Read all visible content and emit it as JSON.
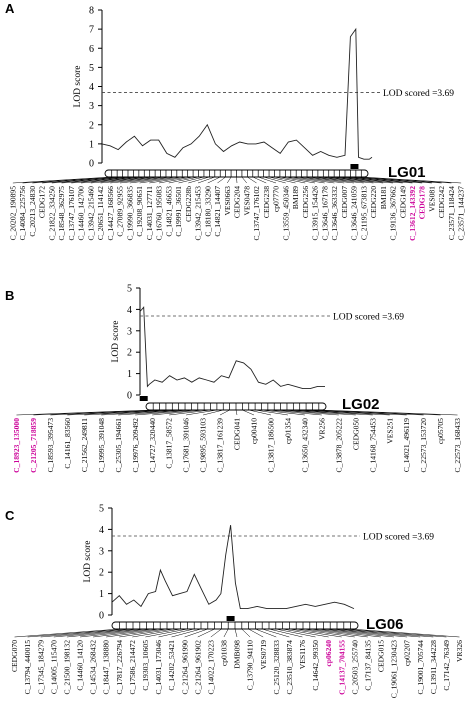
{
  "chart_data": [
    {
      "type": "line",
      "panel": "A",
      "linkage_group": "LG01",
      "ylabel": "LOD score",
      "ylim": [
        0,
        8
      ],
      "yticks": [
        "0",
        "1",
        "2",
        "3",
        "4",
        "5",
        "6",
        "7",
        "8"
      ],
      "threshold_label": "LOD scored =3.69",
      "threshold": 3.69,
      "x": [
        0,
        3,
        6,
        9,
        12,
        15,
        18,
        21,
        24,
        27,
        30,
        33,
        36,
        39,
        42,
        45,
        48,
        51,
        54,
        57,
        60,
        63,
        66,
        69,
        72,
        75,
        78,
        81,
        84,
        87,
        90,
        92,
        94,
        95,
        97,
        99,
        100
      ],
      "values": [
        1.0,
        0.9,
        0.7,
        1.1,
        1.4,
        0.9,
        1.2,
        1.2,
        0.5,
        0.3,
        0.8,
        1.0,
        1.4,
        2.0,
        1.0,
        0.6,
        0.9,
        1.1,
        1.0,
        1.0,
        1.1,
        0.8,
        0.5,
        1.1,
        1.2,
        0.8,
        0.4,
        0.6,
        0.4,
        0.3,
        0.4,
        6.6,
        7.0,
        0.3,
        0.2,
        0.2,
        0.3
      ],
      "qtl_marker_pos": 93.5,
      "markers": [
        "C_20202_190895",
        "C_14084_225756",
        "C_20213_24830",
        "CEDG172",
        "C_21822_334250",
        "C_18548_362975",
        "C_13747_176107",
        "C_14460_142700",
        "C_13942_215460",
        "C_20651_114142",
        "C_14427_168566",
        "C_27089_92955",
        "C_19990_366835",
        "C_19208_90651",
        "C_14031_127711",
        "C_16760_195083",
        "C_14821_46653",
        "C_19991_36501",
        "CEDG228b",
        "C_13942_215453",
        "C_18180_33290",
        "C_14821_14407",
        "VES0663",
        "CEDG204",
        "VES0478",
        "C_13747_176102",
        "CEDG238",
        "cp07770",
        "C_13559_450346",
        "BM189",
        "CEDG256",
        "C_13915_154426",
        "C_13646_167178",
        "C_13646_363332",
        "CEDG007",
        "C_13646_241059",
        "C_21195_673813",
        "CEDG220",
        "BM181",
        "C_19136_367662",
        "CEDG149",
        "C_13612_143392",
        "CEDG178",
        "VES081",
        "CEDG242",
        "C_23571_118424",
        "C_23571_144237"
      ],
      "highlighted": [
        "C_13612_143392",
        "CEDG178"
      ]
    },
    {
      "type": "line",
      "panel": "B",
      "linkage_group": "LG02",
      "ylabel": "LOD score",
      "ylim": [
        0,
        5
      ],
      "yticks": [
        "0",
        "1",
        "2",
        "3",
        "4",
        "5"
      ],
      "threshold_label": "LOD scored =3.69",
      "threshold": 3.69,
      "x": [
        0,
        2,
        4,
        5,
        8,
        12,
        16,
        20,
        24,
        28,
        32,
        36,
        40,
        44,
        48,
        52,
        56,
        60,
        64,
        68,
        72,
        76,
        80,
        84,
        88,
        92,
        96,
        100
      ],
      "values": [
        3.9,
        4.1,
        0.4,
        0.5,
        0.7,
        0.6,
        0.9,
        0.7,
        0.8,
        0.6,
        0.8,
        0.7,
        0.6,
        0.9,
        0.8,
        1.6,
        1.5,
        1.2,
        0.6,
        0.5,
        0.7,
        0.4,
        0.5,
        0.4,
        0.3,
        0.3,
        0.4,
        0.4
      ],
      "qtl_marker_pos": 2,
      "markers": [
        "C_18923_135000",
        "C_21205_718859",
        "C_18593_395473",
        "C_14161_83560",
        "C_21562_249811",
        "C_19995_391048",
        "C_25305_194661",
        "C_19976_209492",
        "C_14727_320440",
        "C_13817_58572",
        "C_17681_391046",
        "C_19895_593103",
        "C_13817_161239",
        "CEDG041",
        "cp00410",
        "C_13817_186500",
        "cp01354",
        "C_13650_432340",
        "VR256",
        "C_13878_205222",
        "CEDG050",
        "C_14168_754453",
        "VES251",
        "C_14021_496119",
        "C_22573_153720",
        "cp05705",
        "C_22573_168433"
      ],
      "highlighted": [
        "C_18923_135000",
        "C_21205_718859"
      ]
    },
    {
      "type": "line",
      "panel": "C",
      "linkage_group": "LG06",
      "ylabel": "LOD score",
      "ylim": [
        0,
        5
      ],
      "yticks": [
        "0",
        "1",
        "2",
        "3",
        "4",
        "5"
      ],
      "threshold_label": "LOD scored =3.69",
      "threshold": 3.69,
      "x": [
        0,
        3,
        6,
        9,
        12,
        15,
        18,
        20,
        22,
        25,
        28,
        31,
        34,
        37,
        40,
        43,
        45,
        47,
        49,
        51,
        53,
        56,
        60,
        64,
        68,
        72,
        76,
        80,
        84,
        88,
        92,
        96,
        100
      ],
      "values": [
        0.6,
        0.9,
        0.5,
        0.7,
        0.4,
        1.0,
        1.1,
        2.1,
        1.6,
        0.9,
        1.0,
        1.1,
        1.9,
        1.2,
        0.5,
        0.7,
        1.0,
        2.8,
        4.2,
        1.5,
        0.3,
        0.3,
        0.4,
        0.3,
        0.3,
        0.3,
        0.4,
        0.5,
        0.4,
        0.5,
        0.6,
        0.5,
        0.3
      ],
      "qtl_marker_pos": 49,
      "markers": [
        "CEDG070",
        "C_13794_440015",
        "C_17345_184279",
        "C_14005_115470",
        "C_21500_198132",
        "C_14460_14120",
        "C_14534_268432",
        "C_18447_138880",
        "C_17817_226794",
        "C_17586_214472",
        "C_19303_10605",
        "C_14031_173046",
        "C_14202_53421",
        "C_21264_961990",
        "C_21264_961902",
        "C_14022_170223",
        "cp01038",
        "DMB098",
        "C_13790_94110",
        "VES0719",
        "C_25120_328833",
        "C_23510_383874",
        "VES1176",
        "C_14642_99350",
        "cp06240",
        "C_14137_704155",
        "C_20503_255740",
        "C_17137_84135",
        "CEDG015",
        "C_19061_1230423",
        "cp02207",
        "C_19001_705744",
        "C_13911_344228",
        "C_17142_76349",
        "VR326"
      ],
      "highlighted": [
        "cp06240",
        "C_14137_704155"
      ]
    }
  ]
}
